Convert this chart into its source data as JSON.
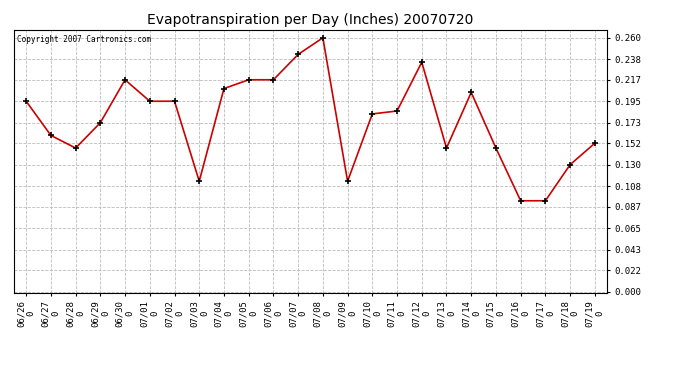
{
  "title": "Evapotranspiration per Day (Inches) 20070720",
  "copyright": "Copyright 2007 Cartronics.com",
  "dates": [
    "06/26",
    "06/27",
    "06/28",
    "06/29",
    "06/30",
    "07/01",
    "07/02",
    "07/03",
    "07/04",
    "07/05",
    "07/06",
    "07/07",
    "07/08",
    "07/09",
    "07/10",
    "07/11",
    "07/12",
    "07/13",
    "07/14",
    "07/15",
    "07/16",
    "07/17",
    "07/18",
    "07/19"
  ],
  "date_suffix": [
    "0",
    "0",
    "0",
    "0",
    "0",
    "0",
    "0",
    "0",
    "0",
    "0",
    "0",
    "0",
    "0",
    "0",
    "0",
    "0",
    "0",
    "0",
    "0",
    "0",
    "0",
    "0",
    "0",
    "0"
  ],
  "values": [
    0.195,
    0.16,
    0.147,
    0.173,
    0.217,
    0.195,
    0.195,
    0.113,
    0.208,
    0.217,
    0.217,
    0.243,
    0.26,
    0.113,
    0.182,
    0.185,
    0.235,
    0.147,
    0.204,
    0.147,
    0.093,
    0.093,
    0.13,
    0.152
  ],
  "line_color": "#cc0000",
  "marker": "+",
  "marker_color": "#000000",
  "background_color": "#ffffff",
  "grid_color": "#bbbbbb",
  "ylim": [
    0.0,
    0.26
  ],
  "yticks": [
    0.0,
    0.022,
    0.043,
    0.065,
    0.087,
    0.108,
    0.13,
    0.152,
    0.173,
    0.195,
    0.217,
    0.238,
    0.26
  ],
  "title_fontsize": 10,
  "tick_fontsize": 6.5,
  "copyright_fontsize": 5.5,
  "figwidth": 6.9,
  "figheight": 3.75
}
